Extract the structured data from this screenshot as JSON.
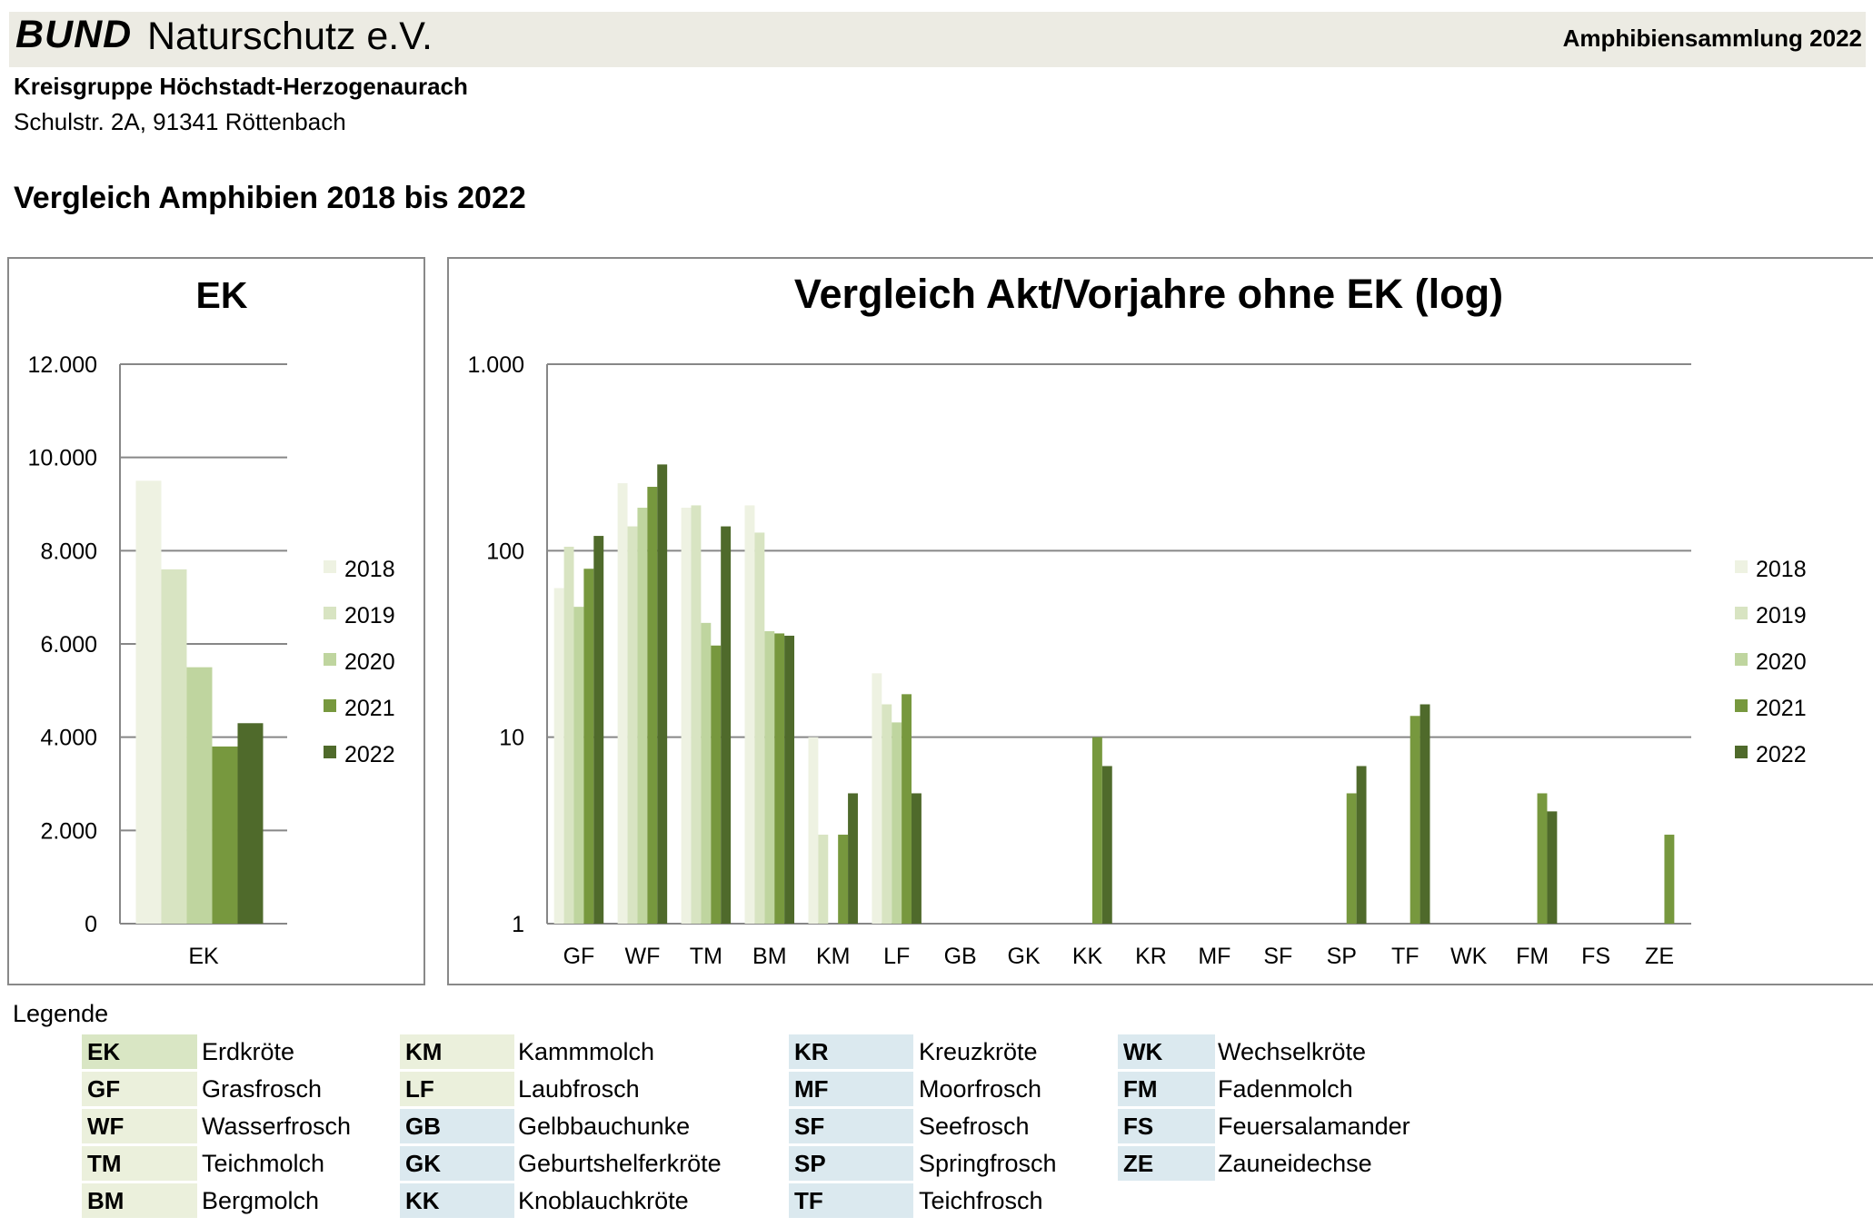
{
  "header": {
    "brand_bold": "BUND",
    "brand_rest": "Naturschutz e.V.",
    "right_title": "Amphibiensammlung 2022"
  },
  "org": {
    "name": "Kreisgruppe Höchstadt-Herzogenaurach",
    "address": "Schulstr. 2A, 91341 Röttenbach"
  },
  "section_title": "Vergleich Amphibien 2018 bis 2022",
  "colors": {
    "2018": "#eef2e2",
    "2019": "#d8e4c2",
    "2020": "#bfd59f",
    "2021": "#77983e",
    "2022": "#4f6a2b",
    "legend_green": "#d9e6c4",
    "legend_light": "#ebf0dc",
    "legend_blue": "#dbe9ef",
    "grid": "#878787"
  },
  "chart_data": [
    {
      "type": "bar",
      "title": "EK",
      "categories": [
        "EK"
      ],
      "series": [
        {
          "name": "2018",
          "values": [
            9500
          ]
        },
        {
          "name": "2019",
          "values": [
            7600
          ]
        },
        {
          "name": "2020",
          "values": [
            5500
          ]
        },
        {
          "name": "2021",
          "values": [
            3800
          ]
        },
        {
          "name": "2022",
          "values": [
            4300
          ]
        }
      ],
      "ylim": [
        0,
        12000
      ],
      "yticks": [
        0,
        2000,
        4000,
        6000,
        8000,
        10000,
        12000
      ],
      "ytick_labels": [
        "0",
        "2.000",
        "4.000",
        "6.000",
        "8.000",
        "10.000",
        "12.000"
      ],
      "grid": true,
      "legend": "right"
    },
    {
      "type": "bar",
      "title": "Vergleich Akt/Vorjahre ohne EK (log)",
      "yscale": "log",
      "categories": [
        "GF",
        "WF",
        "TM",
        "BM",
        "KM",
        "LF",
        "GB",
        "GK",
        "KK",
        "KR",
        "MF",
        "SF",
        "SP",
        "TF",
        "WK",
        "FM",
        "FS",
        "ZE"
      ],
      "series": [
        {
          "name": "2018",
          "values": [
            63,
            230,
            170,
            175,
            10,
            22,
            0,
            0,
            0,
            0,
            0,
            0,
            0,
            0,
            0,
            0,
            0,
            0
          ]
        },
        {
          "name": "2019",
          "values": [
            105,
            135,
            175,
            125,
            3,
            15,
            0,
            0,
            0,
            0,
            0,
            0,
            0,
            0,
            0,
            0,
            0,
            0
          ]
        },
        {
          "name": "2020",
          "values": [
            50,
            170,
            41,
            37,
            0,
            12,
            0,
            0,
            0,
            0,
            0,
            0,
            0,
            0,
            0,
            0,
            0,
            0
          ]
        },
        {
          "name": "2021",
          "values": [
            80,
            220,
            31,
            36,
            3,
            17,
            0,
            0,
            10,
            0,
            0,
            0,
            5,
            13,
            0,
            5,
            0,
            3
          ]
        },
        {
          "name": "2022",
          "values": [
            120,
            290,
            135,
            35,
            5,
            5,
            0,
            0,
            7,
            0,
            0,
            0,
            7,
            15,
            0,
            4,
            0,
            0
          ]
        }
      ],
      "ylim": [
        1,
        1000
      ],
      "yticks": [
        1,
        10,
        100,
        1000
      ],
      "ytick_labels": [
        "1",
        "10",
        "100",
        "1.000"
      ],
      "grid": true,
      "legend": "right"
    }
  ],
  "legend": {
    "title": "Legende",
    "items": [
      {
        "code": "EK",
        "name": "Erdkröte",
        "bg": "#d9e6c4"
      },
      {
        "code": "GF",
        "name": "Grasfrosch",
        "bg": "#ebf0dc"
      },
      {
        "code": "WF",
        "name": "Wasserfrosch",
        "bg": "#ebf0dc"
      },
      {
        "code": "TM",
        "name": "Teichmolch",
        "bg": "#ebf0dc"
      },
      {
        "code": "BM",
        "name": "Bergmolch",
        "bg": "#ebf0dc"
      },
      {
        "code": "KM",
        "name": "Kammmolch",
        "bg": "#ebf0dc"
      },
      {
        "code": "LF",
        "name": "Laubfrosch",
        "bg": "#ebf0dc"
      },
      {
        "code": "GB",
        "name": "Gelbbauchunke",
        "bg": "#dbe9ef"
      },
      {
        "code": "GK",
        "name": "Geburtshelferkröte",
        "bg": "#dbe9ef"
      },
      {
        "code": "KK",
        "name": "Knoblauchkröte",
        "bg": "#dbe9ef"
      },
      {
        "code": "KR",
        "name": "Kreuzkröte",
        "bg": "#dbe9ef"
      },
      {
        "code": "MF",
        "name": "Moorfrosch",
        "bg": "#dbe9ef"
      },
      {
        "code": "SF",
        "name": "Seefrosch",
        "bg": "#dbe9ef"
      },
      {
        "code": "SP",
        "name": "Springfrosch",
        "bg": "#dbe9ef"
      },
      {
        "code": "TF",
        "name": "Teichfrosch",
        "bg": "#dbe9ef"
      },
      {
        "code": "WK",
        "name": "Wechselkröte",
        "bg": "#dbe9ef"
      },
      {
        "code": "FM",
        "name": "Fadenmolch",
        "bg": "#dbe9ef"
      },
      {
        "code": "FS",
        "name": "Feuersalamander",
        "bg": "#dbe9ef"
      },
      {
        "code": "ZE",
        "name": "Zauneidechse",
        "bg": "#dbe9ef"
      }
    ]
  }
}
